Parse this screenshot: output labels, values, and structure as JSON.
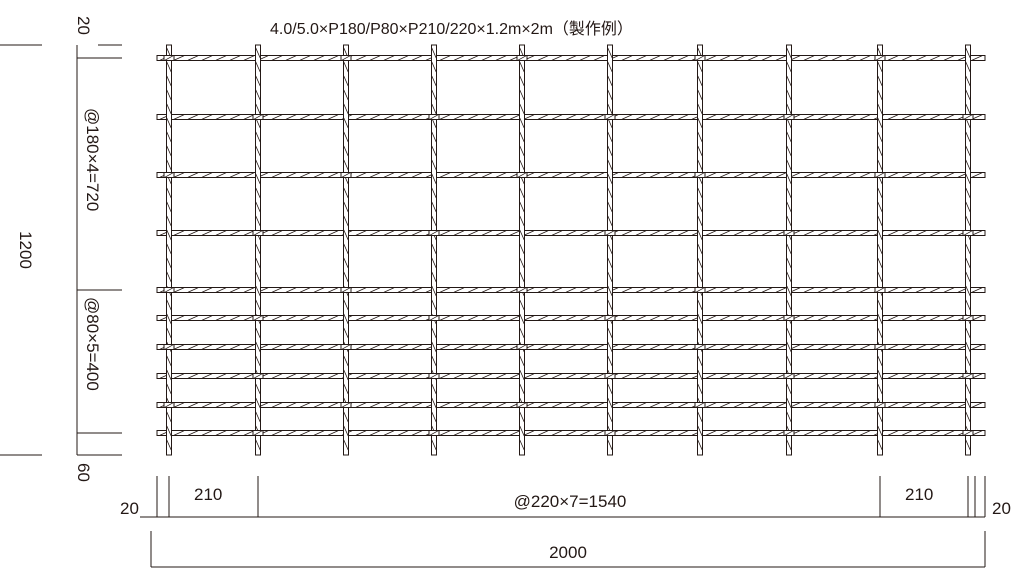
{
  "title": "4.0/5.0×P180/P80×P210/220×1.2m×2m（製作例）",
  "dimensions": {
    "overall_height": "1200",
    "overall_width": "2000",
    "top_margin": "20",
    "bottom_margin": "60",
    "left_margin": "20",
    "right_margin": "20",
    "upper_pitch": "@180×4=720",
    "lower_pitch": "@80×5=400",
    "left_end_pitch": "210",
    "right_end_pitch": "210",
    "middle_pitch": "@220×7=1540"
  },
  "colors": {
    "line": "#231815",
    "background": "#ffffff"
  }
}
